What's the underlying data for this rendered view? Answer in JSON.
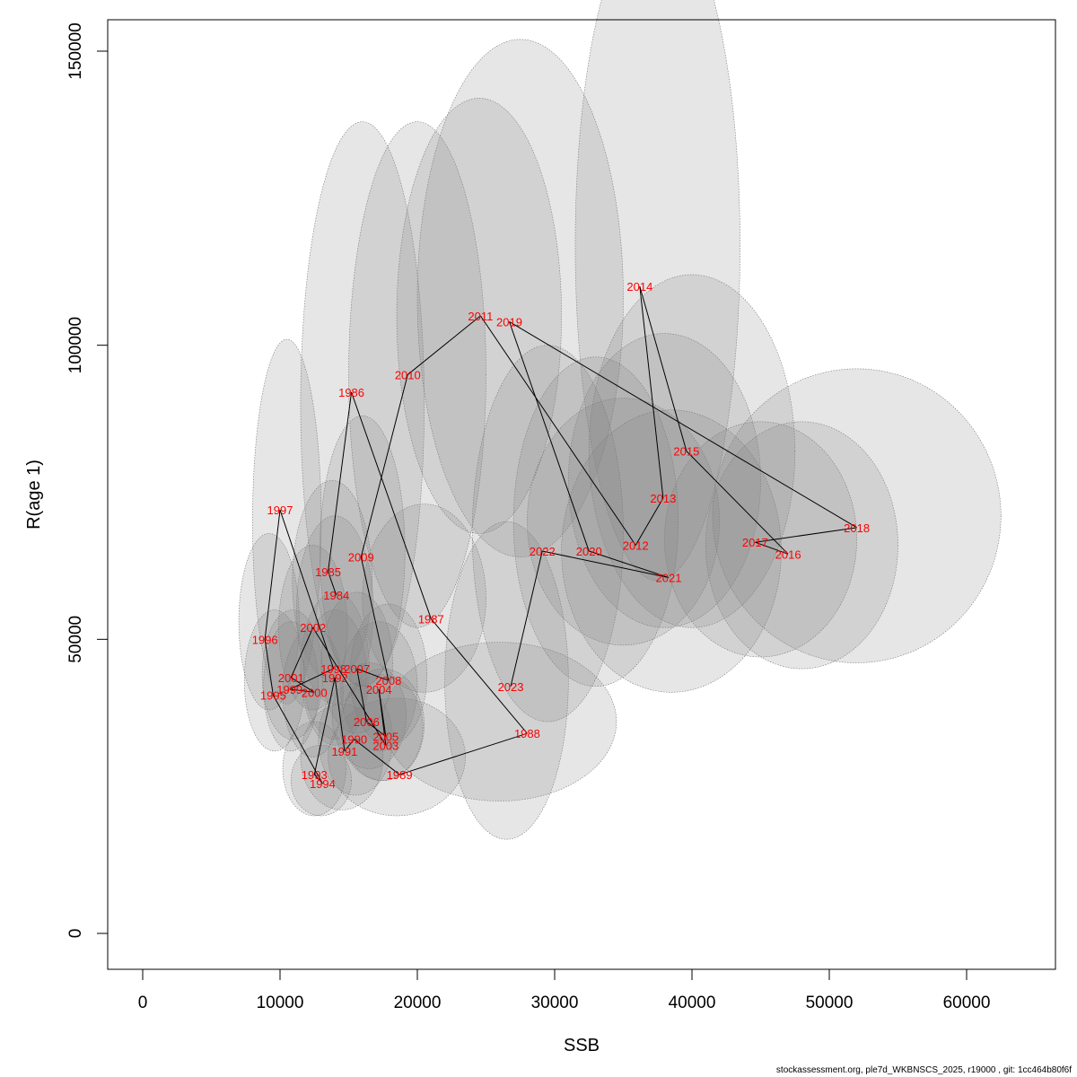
{
  "footer": "stockassessment.org, ple7d_WKBNSCS_2025, r19000 , git: 1cc464b80f6f",
  "chart_data": {
    "type": "scatter",
    "xlabel": "SSB",
    "ylabel": "R(age 1)",
    "xlim": [
      0,
      60000
    ],
    "ylim": [
      0,
      150000
    ],
    "xticks": [
      0,
      10000,
      20000,
      30000,
      40000,
      50000,
      60000
    ],
    "yticks": [
      0,
      50000,
      100000,
      150000
    ],
    "grid": false,
    "point_label_color": "#ff0000",
    "path_color": "#000000",
    "ellipse_fill": "rgba(128,128,128,0.2)",
    "points": [
      {
        "year": "1984",
        "x": 14100,
        "y": 57500
      },
      {
        "year": "1985",
        "x": 13500,
        "y": 61500
      },
      {
        "year": "1986",
        "x": 15200,
        "y": 92000
      },
      {
        "year": "1987",
        "x": 21000,
        "y": 53500
      },
      {
        "year": "1988",
        "x": 28000,
        "y": 34000
      },
      {
        "year": "1989",
        "x": 18700,
        "y": 27000
      },
      {
        "year": "1990",
        "x": 15400,
        "y": 33000
      },
      {
        "year": "1991",
        "x": 14700,
        "y": 31000
      },
      {
        "year": "1992",
        "x": 14000,
        "y": 43500
      },
      {
        "year": "1993",
        "x": 12500,
        "y": 27000
      },
      {
        "year": "1994",
        "x": 13100,
        "y": 25500
      },
      {
        "year": "1995",
        "x": 9500,
        "y": 40500
      },
      {
        "year": "1996",
        "x": 8900,
        "y": 50000
      },
      {
        "year": "1997",
        "x": 10000,
        "y": 72000
      },
      {
        "year": "1998",
        "x": 13900,
        "y": 45000
      },
      {
        "year": "1999",
        "x": 10700,
        "y": 41500
      },
      {
        "year": "2000",
        "x": 12500,
        "y": 41000
      },
      {
        "year": "2001",
        "x": 10800,
        "y": 43500
      },
      {
        "year": "2002",
        "x": 12400,
        "y": 52000
      },
      {
        "year": "2003",
        "x": 17700,
        "y": 32000
      },
      {
        "year": "2004",
        "x": 17200,
        "y": 41500
      },
      {
        "year": "2005",
        "x": 17700,
        "y": 33500
      },
      {
        "year": "2006",
        "x": 16300,
        "y": 36000
      },
      {
        "year": "2007",
        "x": 15600,
        "y": 45000
      },
      {
        "year": "2008",
        "x": 17900,
        "y": 43000
      },
      {
        "year": "2009",
        "x": 15900,
        "y": 64000
      },
      {
        "year": "2010",
        "x": 19300,
        "y": 95000
      },
      {
        "year": "2011",
        "x": 24600,
        "y": 105000
      },
      {
        "year": "2012",
        "x": 35900,
        "y": 66000
      },
      {
        "year": "2013",
        "x": 37900,
        "y": 74000
      },
      {
        "year": "2014",
        "x": 36200,
        "y": 110000
      },
      {
        "year": "2015",
        "x": 39600,
        "y": 82000
      },
      {
        "year": "2016",
        "x": 47000,
        "y": 64500
      },
      {
        "year": "2017",
        "x": 44600,
        "y": 66500
      },
      {
        "year": "2018",
        "x": 52000,
        "y": 69000
      },
      {
        "year": "2019",
        "x": 26700,
        "y": 104000
      },
      {
        "year": "2020",
        "x": 32500,
        "y": 65000
      },
      {
        "year": "2021",
        "x": 38300,
        "y": 60500
      },
      {
        "year": "2022",
        "x": 29100,
        "y": 65000
      },
      {
        "year": "2023",
        "x": 26800,
        "y": 42000
      }
    ],
    "ellipses": [
      {
        "cx": 14000,
        "cy": 55000,
        "rx": 2800,
        "ry": 16000
      },
      {
        "cx": 13800,
        "cy": 60000,
        "rx": 2900,
        "ry": 17000
      },
      {
        "cx": 16000,
        "cy": 90000,
        "rx": 4500,
        "ry": 48000
      },
      {
        "cx": 20500,
        "cy": 57000,
        "rx": 4500,
        "ry": 16000
      },
      {
        "cx": 26000,
        "cy": 36000,
        "rx": 8500,
        "ry": 13500
      },
      {
        "cx": 18500,
        "cy": 30000,
        "rx": 5000,
        "ry": 10000
      },
      {
        "cx": 15500,
        "cy": 33000,
        "rx": 2700,
        "ry": 9500
      },
      {
        "cx": 14500,
        "cy": 30000,
        "rx": 3000,
        "ry": 9000
      },
      {
        "cx": 14000,
        "cy": 44000,
        "rx": 2300,
        "ry": 11000
      },
      {
        "cx": 12500,
        "cy": 28000,
        "rx": 2300,
        "ry": 8000
      },
      {
        "cx": 13000,
        "cy": 26000,
        "rx": 2200,
        "ry": 6000
      },
      {
        "cx": 9600,
        "cy": 43000,
        "rx": 2200,
        "ry": 12000
      },
      {
        "cx": 9200,
        "cy": 53000,
        "rx": 2200,
        "ry": 15000
      },
      {
        "cx": 10500,
        "cy": 70000,
        "rx": 2500,
        "ry": 31000
      },
      {
        "cx": 14000,
        "cy": 45000,
        "rx": 2500,
        "ry": 13000
      },
      {
        "cx": 10800,
        "cy": 42000,
        "rx": 2000,
        "ry": 11000
      },
      {
        "cx": 12400,
        "cy": 41000,
        "rx": 2200,
        "ry": 11000
      },
      {
        "cx": 10900,
        "cy": 44000,
        "rx": 2200,
        "ry": 11000
      },
      {
        "cx": 12400,
        "cy": 52000,
        "rx": 2500,
        "ry": 14000
      },
      {
        "cx": 17400,
        "cy": 35000,
        "rx": 3000,
        "ry": 9000
      },
      {
        "cx": 17200,
        "cy": 42000,
        "rx": 2800,
        "ry": 11000
      },
      {
        "cx": 17500,
        "cy": 35500,
        "rx": 3000,
        "ry": 9500
      },
      {
        "cx": 16500,
        "cy": 37000,
        "rx": 2700,
        "ry": 9000
      },
      {
        "cx": 15600,
        "cy": 46000,
        "rx": 2600,
        "ry": 12000
      },
      {
        "cx": 17900,
        "cy": 44000,
        "rx": 2800,
        "ry": 12000
      },
      {
        "cx": 16000,
        "cy": 65000,
        "rx": 3100,
        "ry": 23000
      },
      {
        "cx": 20000,
        "cy": 95000,
        "rx": 5000,
        "ry": 43000
      },
      {
        "cx": 24500,
        "cy": 105000,
        "rx": 6000,
        "ry": 37000
      },
      {
        "cx": 35000,
        "cy": 70000,
        "rx": 7000,
        "ry": 21000
      },
      {
        "cx": 38000,
        "cy": 77000,
        "rx": 7000,
        "ry": 25000
      },
      {
        "cx": 37500,
        "cy": 117000,
        "rx": 6000,
        "ry": 57000
      },
      {
        "cx": 40000,
        "cy": 82000,
        "rx": 7500,
        "ry": 30000
      },
      {
        "cx": 48000,
        "cy": 66000,
        "rx": 7000,
        "ry": 21000
      },
      {
        "cx": 45000,
        "cy": 67000,
        "rx": 7000,
        "ry": 20000
      },
      {
        "cx": 52000,
        "cy": 71000,
        "rx": 10500,
        "ry": 25000
      },
      {
        "cx": 27500,
        "cy": 108000,
        "rx": 7500,
        "ry": 44000
      },
      {
        "cx": 33000,
        "cy": 70000,
        "rx": 6000,
        "ry": 28000
      },
      {
        "cx": 38500,
        "cy": 65000,
        "rx": 8000,
        "ry": 24000
      },
      {
        "cx": 29500,
        "cy": 68000,
        "rx": 5500,
        "ry": 32000
      },
      {
        "cx": 26500,
        "cy": 43000,
        "rx": 4500,
        "ry": 27000
      }
    ]
  }
}
